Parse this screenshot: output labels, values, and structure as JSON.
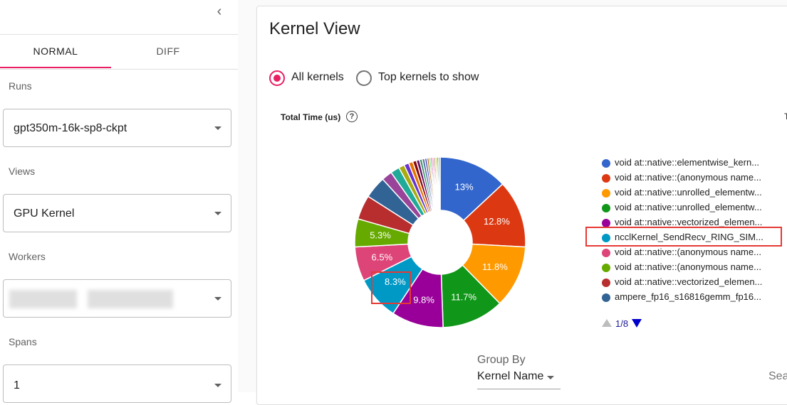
{
  "sidebar": {
    "tabs": {
      "normal": "NORMAL",
      "diff": "DIFF"
    },
    "runs": {
      "label": "Runs",
      "value": "gpt350m-16k-sp8-ckpt"
    },
    "views": {
      "label": "Views",
      "value": "GPU Kernel"
    },
    "workers": {
      "label": "Workers"
    },
    "spans": {
      "label": "Spans",
      "value": "1"
    }
  },
  "main": {
    "title": "Kernel View",
    "radio": {
      "all": "All kernels",
      "top": "Top kernels to show"
    },
    "chart_header": "Total Time (us)",
    "help_glyph": "?",
    "clipped_char": "T",
    "legend": [
      {
        "label": "void at::native::elementwise_kern...",
        "color": "#3366cc"
      },
      {
        "label": "void at::native::(anonymous name...",
        "color": "#dc3912"
      },
      {
        "label": "void at::native::unrolled_elementw...",
        "color": "#ff9900"
      },
      {
        "label": "void at::native::unrolled_elementw...",
        "color": "#109618"
      },
      {
        "label": "void at::native::vectorized_elemen...",
        "color": "#990099"
      },
      {
        "label": "ncclKernel_SendRecv_RING_SIM...",
        "color": "#0099c6"
      },
      {
        "label": "void at::native::(anonymous name...",
        "color": "#dd4477"
      },
      {
        "label": "void at::native::(anonymous name...",
        "color": "#66aa00"
      },
      {
        "label": "void at::native::vectorized_elemen...",
        "color": "#b82e2e"
      },
      {
        "label": "ampere_fp16_s16816gemm_fp16...",
        "color": "#316395"
      }
    ],
    "pager": "1/8",
    "group_by": {
      "label": "Group By",
      "value": "Kernel Name"
    },
    "search_placeholder": "Sea"
  },
  "chart_data": {
    "type": "pie",
    "donut": true,
    "title": "Total Time (us)",
    "units": "percent",
    "slices": [
      {
        "label": "void at::native::elementwise_kern...",
        "value": 13.0,
        "text": "13%",
        "color": "#3366cc"
      },
      {
        "label": "void at::native::(anonymous name...",
        "value": 12.8,
        "text": "12.8%",
        "color": "#dc3912"
      },
      {
        "label": "void at::native::unrolled_elementw...",
        "value": 11.8,
        "text": "11.8%",
        "color": "#ff9900"
      },
      {
        "label": "void at::native::unrolled_elementw...",
        "value": 11.7,
        "text": "11.7%",
        "color": "#109618"
      },
      {
        "label": "void at::native::vectorized_elemen...",
        "value": 9.8,
        "text": "9.8%",
        "color": "#990099"
      },
      {
        "label": "ncclKernel_SendRecv_RING_SIM...",
        "value": 8.3,
        "text": "8.3%",
        "color": "#0099c6"
      },
      {
        "label": "void at::native::(anonymous name...",
        "value": 6.5,
        "text": "6.5%",
        "color": "#dd4477"
      },
      {
        "label": "void at::native::(anonymous name...",
        "value": 5.3,
        "text": "5.3%",
        "color": "#66aa00"
      },
      {
        "label": "void at::native::vectorized_elemen...",
        "value": 4.6,
        "text": "",
        "color": "#b82e2e"
      },
      {
        "label": "ampere_fp16_s16816gemm_fp16...",
        "value": 4.2,
        "text": "",
        "color": "#316395"
      },
      {
        "label": "",
        "value": 2.0,
        "text": "",
        "color": "#994499"
      },
      {
        "label": "",
        "value": 1.7,
        "text": "",
        "color": "#22aa99"
      },
      {
        "label": "",
        "value": 1.1,
        "text": "",
        "color": "#aaaa11"
      },
      {
        "label": "",
        "value": 0.9,
        "text": "",
        "color": "#6633cc"
      },
      {
        "label": "",
        "value": 0.8,
        "text": "",
        "color": "#e67300"
      },
      {
        "label": "",
        "value": 0.7,
        "text": "",
        "color": "#8b0707"
      },
      {
        "label": "",
        "value": 0.6,
        "text": "",
        "color": "#651067"
      },
      {
        "label": "",
        "value": 0.5,
        "text": "",
        "color": "#329262"
      },
      {
        "label": "",
        "value": 0.5,
        "text": "",
        "color": "#5574a6"
      },
      {
        "label": "",
        "value": 0.4,
        "text": "",
        "color": "#3b3eac"
      },
      {
        "label": "",
        "value": 0.4,
        "text": "",
        "color": "#b77322"
      },
      {
        "label": "",
        "value": 0.3,
        "text": "",
        "color": "#16d620"
      },
      {
        "label": "",
        "value": 0.3,
        "text": "",
        "color": "#b91383"
      },
      {
        "label": "",
        "value": 0.3,
        "text": "",
        "color": "#f4359e"
      },
      {
        "label": "",
        "value": 0.3,
        "text": "",
        "color": "#9c5935"
      },
      {
        "label": "",
        "value": 0.3,
        "text": "",
        "color": "#a9c413"
      },
      {
        "label": "",
        "value": 0.3,
        "text": "",
        "color": "#2a778d"
      },
      {
        "label": "",
        "value": 0.3,
        "text": "",
        "color": "#668d1c"
      }
    ]
  }
}
